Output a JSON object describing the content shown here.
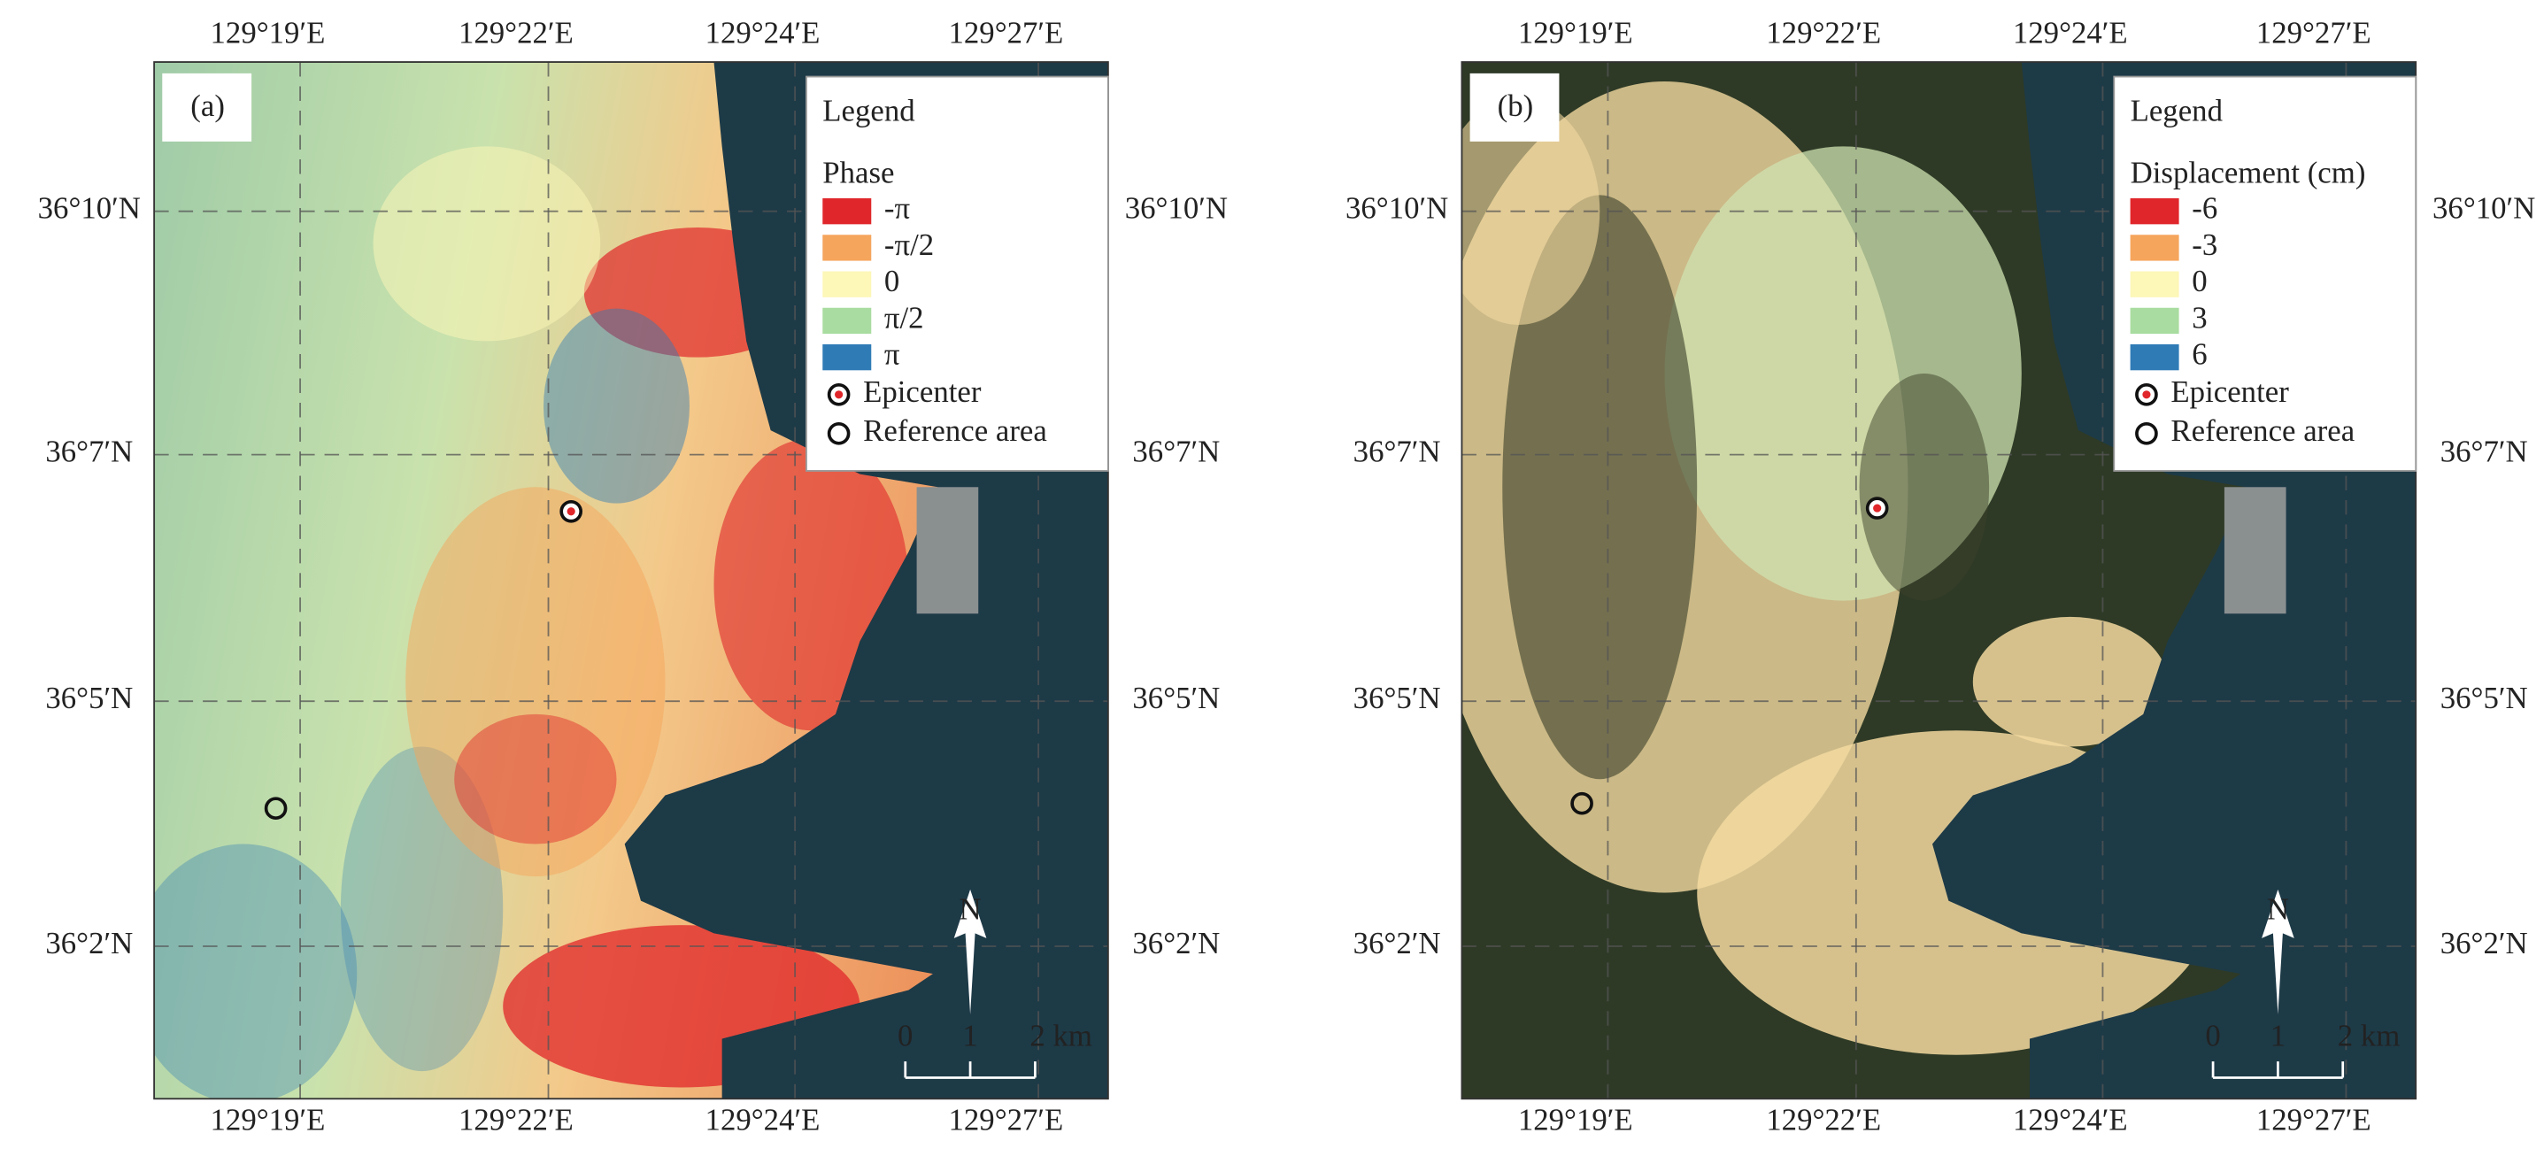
{
  "panels": [
    {
      "label": "(a)",
      "lon_labels": [
        "129°19′E",
        "129°22′E",
        "129°24′E",
        "129°27′E"
      ],
      "lat_labels": [
        "36°10′N",
        "36°7′N",
        "36°5′N",
        "36°2′N"
      ],
      "legend": {
        "title": "Legend",
        "heading": "Phase",
        "items": [
          {
            "label": "-π",
            "color": "#e0262a"
          },
          {
            "label": "-π/2",
            "color": "#f5a55c"
          },
          {
            "label": "0",
            "color": "#fdf7b8"
          },
          {
            "label": "π/2",
            "color": "#a9dca0"
          },
          {
            "label": "π",
            "color": "#2f7bb6"
          }
        ],
        "epicenter": "Epicenter",
        "reference": "Reference area"
      },
      "north": "N",
      "scale_labels": [
        "0",
        "1",
        "2 km"
      ]
    },
    {
      "label": "(b)",
      "lon_labels": [
        "129°19′E",
        "129°22′E",
        "129°24′E",
        "129°27′E"
      ],
      "lat_labels": [
        "36°10′N",
        "36°7′N",
        "36°5′N",
        "36°2′N"
      ],
      "legend": {
        "title": "Legend",
        "heading": "Displacement (cm)",
        "items": [
          {
            "label": "-6",
            "color": "#e0262a"
          },
          {
            "label": "-3",
            "color": "#f5a55c"
          },
          {
            "label": "0",
            "color": "#fdf7b8"
          },
          {
            "label": "3",
            "color": "#a9dca0"
          },
          {
            "label": "6",
            "color": "#2f7bb6"
          }
        ],
        "epicenter": "Epicenter",
        "reference": "Reference area"
      },
      "north": "N",
      "scale_labels": [
        "0",
        "1",
        "2 km"
      ]
    }
  ]
}
